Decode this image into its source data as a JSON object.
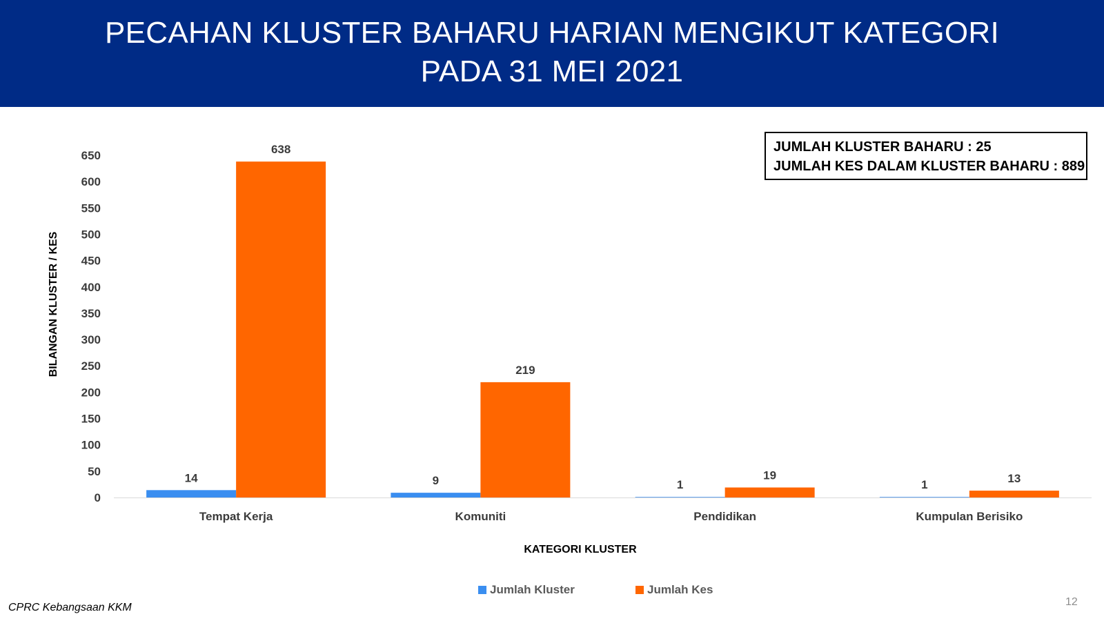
{
  "header": {
    "title_line1": "PECAHAN KLUSTER BAHARU HARIAN MENGIKUT KATEGORI",
    "title_line2": "PADA 31 MEI 2021",
    "bg_color": "#002b86"
  },
  "summary": {
    "line1": "JUMLAH KLUSTER BAHARU : 25",
    "line2": "JUMLAH KES DALAM KLUSTER BAHARU : 889"
  },
  "chart_data": {
    "type": "bar",
    "title": "",
    "xlabel": "KATEGORI KLUSTER",
    "ylabel": "BILANGAN KLUSTER / KES",
    "categories": [
      "Tempat Kerja",
      "Komuniti",
      "Pendidikan",
      "Kumpulan Berisiko"
    ],
    "series": [
      {
        "name": "Jumlah Kluster",
        "values": [
          14,
          9,
          1,
          1
        ],
        "color": "#3a8ef0"
      },
      {
        "name": "Jumlah Kes",
        "values": [
          638,
          219,
          19,
          13
        ],
        "color": "#ff6600"
      }
    ],
    "ylim": [
      0,
      650
    ],
    "yticks": [
      0,
      50,
      100,
      150,
      200,
      250,
      300,
      350,
      400,
      450,
      500,
      550,
      600,
      650
    ],
    "grid": false,
    "legend_position": "bottom"
  },
  "footer": {
    "source": "CPRC Kebangsaan KKM",
    "page_number": "12"
  }
}
